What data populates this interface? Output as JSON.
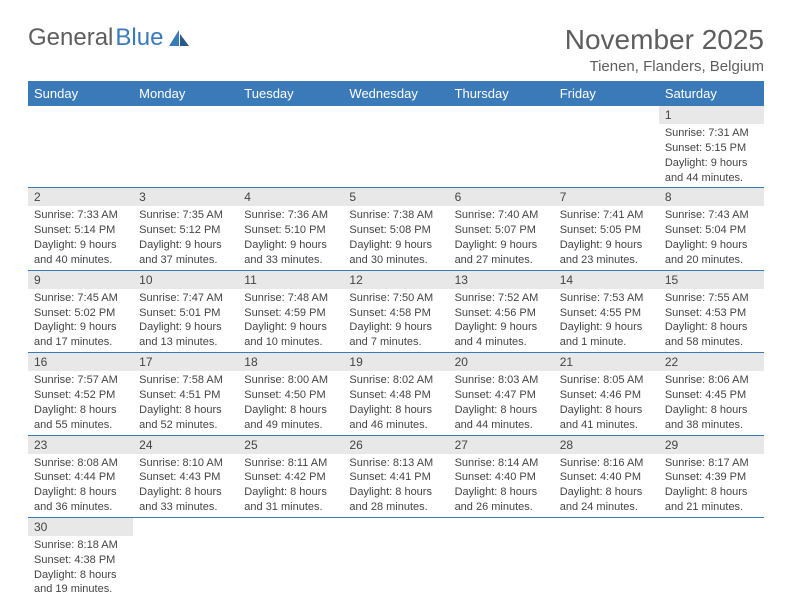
{
  "logo": {
    "text1": "General",
    "text2": "Blue"
  },
  "header": {
    "month_title": "November 2025",
    "location": "Tienen, Flanders, Belgium"
  },
  "colors": {
    "header_bg": "#3b7ab8",
    "header_text": "#ffffff",
    "daynum_bg": "#e8e8e8",
    "text": "#444444",
    "logo_gray": "#5e5e5e",
    "logo_blue": "#3b7ab8"
  },
  "weekdays": [
    "Sunday",
    "Monday",
    "Tuesday",
    "Wednesday",
    "Thursday",
    "Friday",
    "Saturday"
  ],
  "weeks": [
    [
      {
        "empty": true
      },
      {
        "empty": true
      },
      {
        "empty": true
      },
      {
        "empty": true
      },
      {
        "empty": true
      },
      {
        "empty": true
      },
      {
        "day": "1",
        "sunrise": "Sunrise: 7:31 AM",
        "sunset": "Sunset: 5:15 PM",
        "daylight": "Daylight: 9 hours and 44 minutes."
      }
    ],
    [
      {
        "day": "2",
        "sunrise": "Sunrise: 7:33 AM",
        "sunset": "Sunset: 5:14 PM",
        "daylight": "Daylight: 9 hours and 40 minutes."
      },
      {
        "day": "3",
        "sunrise": "Sunrise: 7:35 AM",
        "sunset": "Sunset: 5:12 PM",
        "daylight": "Daylight: 9 hours and 37 minutes."
      },
      {
        "day": "4",
        "sunrise": "Sunrise: 7:36 AM",
        "sunset": "Sunset: 5:10 PM",
        "daylight": "Daylight: 9 hours and 33 minutes."
      },
      {
        "day": "5",
        "sunrise": "Sunrise: 7:38 AM",
        "sunset": "Sunset: 5:08 PM",
        "daylight": "Daylight: 9 hours and 30 minutes."
      },
      {
        "day": "6",
        "sunrise": "Sunrise: 7:40 AM",
        "sunset": "Sunset: 5:07 PM",
        "daylight": "Daylight: 9 hours and 27 minutes."
      },
      {
        "day": "7",
        "sunrise": "Sunrise: 7:41 AM",
        "sunset": "Sunset: 5:05 PM",
        "daylight": "Daylight: 9 hours and 23 minutes."
      },
      {
        "day": "8",
        "sunrise": "Sunrise: 7:43 AM",
        "sunset": "Sunset: 5:04 PM",
        "daylight": "Daylight: 9 hours and 20 minutes."
      }
    ],
    [
      {
        "day": "9",
        "sunrise": "Sunrise: 7:45 AM",
        "sunset": "Sunset: 5:02 PM",
        "daylight": "Daylight: 9 hours and 17 minutes."
      },
      {
        "day": "10",
        "sunrise": "Sunrise: 7:47 AM",
        "sunset": "Sunset: 5:01 PM",
        "daylight": "Daylight: 9 hours and 13 minutes."
      },
      {
        "day": "11",
        "sunrise": "Sunrise: 7:48 AM",
        "sunset": "Sunset: 4:59 PM",
        "daylight": "Daylight: 9 hours and 10 minutes."
      },
      {
        "day": "12",
        "sunrise": "Sunrise: 7:50 AM",
        "sunset": "Sunset: 4:58 PM",
        "daylight": "Daylight: 9 hours and 7 minutes."
      },
      {
        "day": "13",
        "sunrise": "Sunrise: 7:52 AM",
        "sunset": "Sunset: 4:56 PM",
        "daylight": "Daylight: 9 hours and 4 minutes."
      },
      {
        "day": "14",
        "sunrise": "Sunrise: 7:53 AM",
        "sunset": "Sunset: 4:55 PM",
        "daylight": "Daylight: 9 hours and 1 minute."
      },
      {
        "day": "15",
        "sunrise": "Sunrise: 7:55 AM",
        "sunset": "Sunset: 4:53 PM",
        "daylight": "Daylight: 8 hours and 58 minutes."
      }
    ],
    [
      {
        "day": "16",
        "sunrise": "Sunrise: 7:57 AM",
        "sunset": "Sunset: 4:52 PM",
        "daylight": "Daylight: 8 hours and 55 minutes."
      },
      {
        "day": "17",
        "sunrise": "Sunrise: 7:58 AM",
        "sunset": "Sunset: 4:51 PM",
        "daylight": "Daylight: 8 hours and 52 minutes."
      },
      {
        "day": "18",
        "sunrise": "Sunrise: 8:00 AM",
        "sunset": "Sunset: 4:50 PM",
        "daylight": "Daylight: 8 hours and 49 minutes."
      },
      {
        "day": "19",
        "sunrise": "Sunrise: 8:02 AM",
        "sunset": "Sunset: 4:48 PM",
        "daylight": "Daylight: 8 hours and 46 minutes."
      },
      {
        "day": "20",
        "sunrise": "Sunrise: 8:03 AM",
        "sunset": "Sunset: 4:47 PM",
        "daylight": "Daylight: 8 hours and 44 minutes."
      },
      {
        "day": "21",
        "sunrise": "Sunrise: 8:05 AM",
        "sunset": "Sunset: 4:46 PM",
        "daylight": "Daylight: 8 hours and 41 minutes."
      },
      {
        "day": "22",
        "sunrise": "Sunrise: 8:06 AM",
        "sunset": "Sunset: 4:45 PM",
        "daylight": "Daylight: 8 hours and 38 minutes."
      }
    ],
    [
      {
        "day": "23",
        "sunrise": "Sunrise: 8:08 AM",
        "sunset": "Sunset: 4:44 PM",
        "daylight": "Daylight: 8 hours and 36 minutes."
      },
      {
        "day": "24",
        "sunrise": "Sunrise: 8:10 AM",
        "sunset": "Sunset: 4:43 PM",
        "daylight": "Daylight: 8 hours and 33 minutes."
      },
      {
        "day": "25",
        "sunrise": "Sunrise: 8:11 AM",
        "sunset": "Sunset: 4:42 PM",
        "daylight": "Daylight: 8 hours and 31 minutes."
      },
      {
        "day": "26",
        "sunrise": "Sunrise: 8:13 AM",
        "sunset": "Sunset: 4:41 PM",
        "daylight": "Daylight: 8 hours and 28 minutes."
      },
      {
        "day": "27",
        "sunrise": "Sunrise: 8:14 AM",
        "sunset": "Sunset: 4:40 PM",
        "daylight": "Daylight: 8 hours and 26 minutes."
      },
      {
        "day": "28",
        "sunrise": "Sunrise: 8:16 AM",
        "sunset": "Sunset: 4:40 PM",
        "daylight": "Daylight: 8 hours and 24 minutes."
      },
      {
        "day": "29",
        "sunrise": "Sunrise: 8:17 AM",
        "sunset": "Sunset: 4:39 PM",
        "daylight": "Daylight: 8 hours and 21 minutes."
      }
    ],
    [
      {
        "day": "30",
        "sunrise": "Sunrise: 8:18 AM",
        "sunset": "Sunset: 4:38 PM",
        "daylight": "Daylight: 8 hours and 19 minutes."
      },
      {
        "empty": true
      },
      {
        "empty": true
      },
      {
        "empty": true
      },
      {
        "empty": true
      },
      {
        "empty": true
      },
      {
        "empty": true
      }
    ]
  ]
}
